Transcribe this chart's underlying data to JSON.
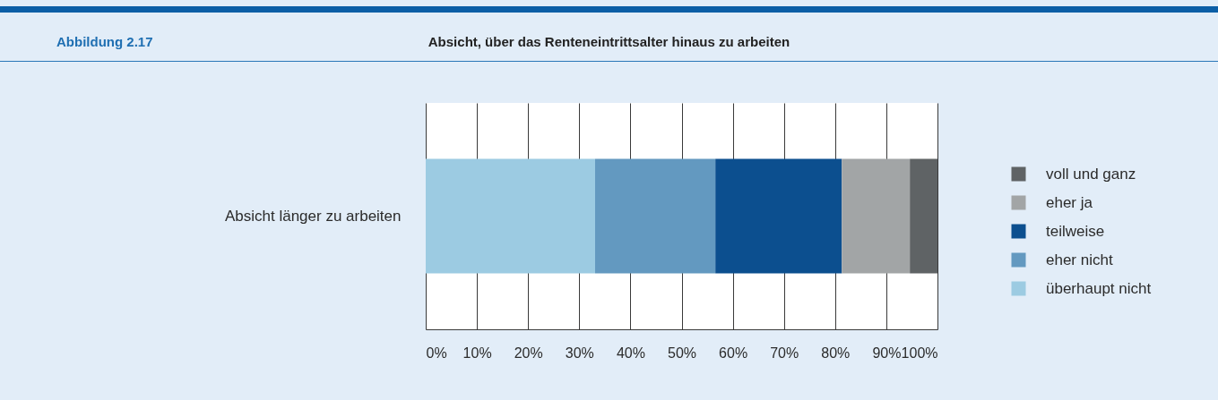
{
  "chart_data": {
    "type": "bar",
    "title": "Absicht, über das Renteneintrittsalter hinaus zu arbeiten",
    "annotations": [
      "Abbildung 2.17"
    ],
    "orientation": "horizontal",
    "stacked": true,
    "categories": [
      "Absicht länger zu arbeiten"
    ],
    "series": [
      {
        "name": "überhaupt nicht",
        "color": "#9ccbe2",
        "values": [
          33.1
        ]
      },
      {
        "name": "eher nicht",
        "color": "#6399c0",
        "values": [
          23.5
        ]
      },
      {
        "name": "teilweise",
        "color": "#0c4f8f",
        "values": [
          24.7
        ]
      },
      {
        "name": "eher ja",
        "color": "#a2a5a6",
        "values": [
          13.3
        ]
      },
      {
        "name": "voll und ganz",
        "color": "#5f6365",
        "values": [
          5.4
        ]
      }
    ],
    "xlim": [
      0,
      100
    ],
    "xticks": [
      {
        "value": 0,
        "label": "0%"
      },
      {
        "value": 10,
        "label": "10%"
      },
      {
        "value": 20,
        "label": "20%"
      },
      {
        "value": 30,
        "label": "30%"
      },
      {
        "value": 40,
        "label": "40%"
      },
      {
        "value": 50,
        "label": "50%"
      },
      {
        "value": 60,
        "label": "60%"
      },
      {
        "value": 70,
        "label": "70%"
      },
      {
        "value": 80,
        "label": "80%"
      },
      {
        "value": 90,
        "label": "90%"
      },
      {
        "value": 100,
        "label": "100%"
      }
    ],
    "grid": "x",
    "legend": "right"
  }
}
